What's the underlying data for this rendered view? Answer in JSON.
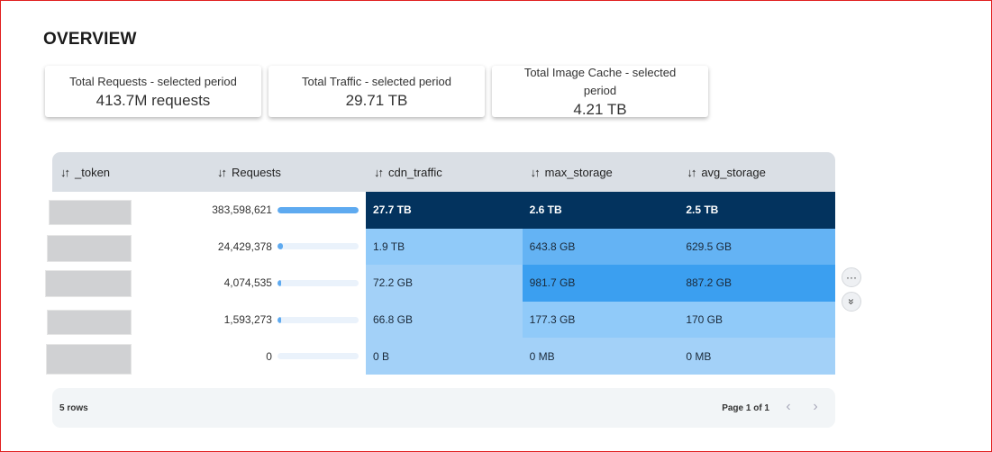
{
  "page": {
    "title": "OVERVIEW"
  },
  "cards": [
    {
      "label": "Total Requests - selected period",
      "value": "413.7M requests"
    },
    {
      "label": "Total Traffic - selected period",
      "value": "29.71 TB"
    },
    {
      "label": "Total Image Cache - selected period",
      "value": "4.21 TB"
    }
  ],
  "table": {
    "sort_glyph": "↓↑",
    "columns": [
      "_token",
      "Requests",
      "cdn_traffic",
      "max_storage",
      "avg_storage"
    ],
    "rows": [
      {
        "requests": "383,598,621",
        "requests_fraction": 1.0,
        "cdn_traffic": "27.7 TB",
        "max_storage": "2.6 TB",
        "avg_storage": "2.5 TB"
      },
      {
        "requests": "24,429,378",
        "requests_fraction": 0.064,
        "cdn_traffic": "1.9 TB",
        "max_storage": "643.8 GB",
        "avg_storage": "629.5 GB"
      },
      {
        "requests": "4,074,535",
        "requests_fraction": 0.011,
        "cdn_traffic": "72.2 GB",
        "max_storage": "981.7 GB",
        "avg_storage": "887.2 GB"
      },
      {
        "requests": "1,593,273",
        "requests_fraction": 0.004,
        "cdn_traffic": "66.8 GB",
        "max_storage": "177.3 GB",
        "avg_storage": "170 GB"
      },
      {
        "requests": "0",
        "requests_fraction": 0.0,
        "cdn_traffic": "0 B",
        "max_storage": "0 MB",
        "avg_storage": "0 MB"
      }
    ]
  },
  "footer": {
    "rows_label": "5 rows",
    "page_label": "Page 1 of 1"
  },
  "icons": {
    "prev": "‹",
    "next": "›",
    "more": "···",
    "expand": "»"
  }
}
